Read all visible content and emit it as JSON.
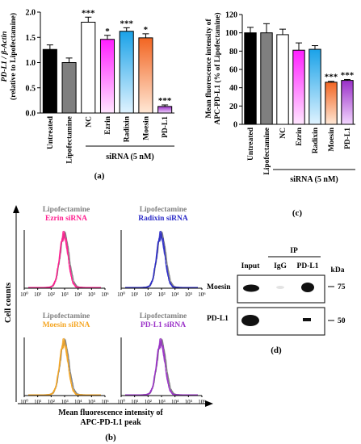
{
  "panel_labels": {
    "a": "(a)",
    "b": "(b)",
    "c": "(c)",
    "d": "(d)"
  },
  "chart_data": [
    {
      "panel": "a",
      "type": "bar",
      "ylabel_line1": "PD-L1 / β-Actin",
      "ylabel_line2": "(relative to Lipofectamine)",
      "ylim": [
        0,
        2.0
      ],
      "yticks": [
        "0.0",
        "0.5",
        "1.0",
        "1.5",
        "2.0"
      ],
      "ytick_values": [
        0,
        0.5,
        1.0,
        1.5,
        2.0
      ],
      "categories": [
        "Untreated",
        "Lipofectamine",
        "NC",
        "Ezrin",
        "Radixin",
        "Moesin",
        "PD-L1"
      ],
      "values": [
        1.26,
        1.0,
        1.8,
        1.46,
        1.62,
        1.49,
        0.13
      ],
      "errors": [
        0.09,
        0.09,
        0.1,
        0.08,
        0.07,
        0.08,
        0.03
      ],
      "significance": [
        "",
        "",
        "***",
        "*",
        "***",
        "*",
        "***"
      ],
      "colors": [
        "#000000",
        "#7f7f7f",
        "#ffffff",
        "#ff1fff",
        "#1aa2e8",
        "#f26522",
        "#9a30c8"
      ],
      "group_label": "siRNA (5 nM)"
    },
    {
      "panel": "c",
      "type": "bar",
      "ylabel_line1": "Mean fluorescence intensity of",
      "ylabel_line2": "APC-PD-L1 (% of Lipofectamine)",
      "ylim": [
        0,
        120
      ],
      "yticks": [
        "0",
        "20",
        "40",
        "60",
        "80",
        "100",
        "120"
      ],
      "ytick_values": [
        0,
        20,
        40,
        60,
        80,
        100,
        120
      ],
      "categories": [
        "Untreated",
        "Lipofectamine",
        "NC",
        "Ezrin",
        "Radixin",
        "Moesin",
        "PD-L1"
      ],
      "values": [
        100,
        100,
        98,
        81,
        82,
        46,
        48
      ],
      "errors": [
        6,
        10,
        6,
        8,
        4,
        1,
        1
      ],
      "significance": [
        "",
        "",
        "",
        "",
        "",
        "***",
        "***"
      ],
      "colors": [
        "#000000",
        "#7f7f7f",
        "#ffffff",
        "#ff1fff",
        "#1aa2e8",
        "#f26522",
        "#9a30c8"
      ],
      "group_label": "siRNA (5 nM)"
    },
    {
      "panel": "b",
      "type": "histogram",
      "ylabel": "Cell counts",
      "xlabel_line1": "Mean fluorescence intensity of",
      "xlabel_line2": "APC-PD-L1 peak",
      "xticks": [
        "10⁰",
        "10¹",
        "10²",
        "10³",
        "10⁴",
        "10⁵",
        "10⁶"
      ],
      "subplots": [
        {
          "line1": "Lipofectamine",
          "line2": "Ezrin siRNA",
          "color": "#ff1f8f"
        },
        {
          "line1": "Lipofectamine",
          "line2": "Radixin siRNA",
          "color": "#2b2bc8"
        },
        {
          "line1": "Lipofectamine",
          "line2": "Moesin siRNA",
          "color": "#f5a623"
        },
        {
          "line1": "Lipofectamine",
          "line2": "PD-L1 siRNA",
          "color": "#9a30c8"
        }
      ],
      "reference_color": "#808080"
    }
  ],
  "blot": {
    "ip_label": "IP",
    "columns": [
      "Input",
      "IgG",
      "PD-L1"
    ],
    "kda_label": "kDa",
    "rows": [
      {
        "label": "Moesin",
        "marker": "75"
      },
      {
        "label": "PD-L1",
        "marker": "50"
      }
    ]
  }
}
